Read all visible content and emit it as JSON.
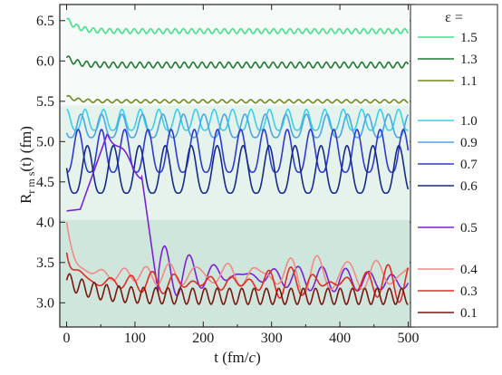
{
  "chart_data": {
    "type": "line",
    "title": "",
    "xlabel": "t (fm/c)",
    "xlabel_parts": {
      "main": "t (fm/",
      "italic": "c",
      "end": ")"
    },
    "ylabel": "Rrms(t) (fm)",
    "ylabel_parts": {
      "main": "R",
      "sub": "r m s",
      "end": "(t) (fm)"
    },
    "xlim": [
      -10,
      510
    ],
    "ylim": [
      2.7,
      6.7
    ],
    "xticks": [
      0,
      100,
      200,
      300,
      400,
      500
    ],
    "xtick_labels": [
      "0",
      "100",
      "200",
      "300",
      "400",
      "500"
    ],
    "yticks": [
      3.0,
      3.5,
      4.0,
      4.5,
      5.0,
      5.5,
      6.0,
      6.5
    ],
    "ytick_labels": [
      "3.0",
      "3.5",
      "4.0",
      "4.5",
      "5.0",
      "5.5",
      "6.0",
      "6.5"
    ],
    "grid": false,
    "background_bands": [
      {
        "y0": 2.7,
        "y1": 4.03,
        "color": "#cfe6dc"
      },
      {
        "y0": 4.03,
        "y1": 5.45,
        "color": "#e6f2ec"
      },
      {
        "y0": 5.45,
        "y1": 6.7,
        "color": "#f6faf8"
      }
    ],
    "legend_title": "ε =",
    "legend_position": "right-outside",
    "series": [
      {
        "name": "1.5",
        "color": "#44e08a",
        "kind": "osc",
        "base": 6.37,
        "amp": 0.03,
        "period": 12,
        "start": 6.52,
        "tau": 15
      },
      {
        "name": "1.3",
        "color": "#1f7a30",
        "kind": "osc",
        "base": 5.95,
        "amp": 0.035,
        "period": 13,
        "start": 6.04,
        "tau": 15
      },
      {
        "name": "1.1",
        "color": "#6f8a1a",
        "kind": "osc",
        "base": 5.5,
        "amp": 0.02,
        "period": 14,
        "start": 5.56,
        "tau": 15
      },
      {
        "name": "1.0",
        "color": "#3ad0e8",
        "kind": "cusp",
        "lo": 5.14,
        "hi": 5.4,
        "period": 27,
        "phase": 0.0
      },
      {
        "name": "0.9",
        "color": "#4aa6e8",
        "kind": "cusp",
        "lo": 5.05,
        "hi": 5.34,
        "period": 30,
        "phase": 0.3
      },
      {
        "name": "0.7",
        "color": "#2e3bd0",
        "kind": "cusp",
        "lo": 4.62,
        "hi": 5.15,
        "period": 34,
        "phase": 0.5
      },
      {
        "name": "0.6",
        "color": "#152a8a",
        "kind": "cusp",
        "lo": 4.36,
        "hi": 4.95,
        "period": 38,
        "phase": 0.2
      },
      {
        "name": "0.5",
        "color": "#7a22d6",
        "kind": "breakup"
      },
      {
        "name": "0.4",
        "color": "#f28a86",
        "kind": "noisy",
        "base": 3.35,
        "amp": 0.22,
        "seed": 1,
        "start": 3.95
      },
      {
        "name": "0.3",
        "color": "#e42a22",
        "kind": "noisy",
        "base": 3.25,
        "amp": 0.2,
        "seed": 2,
        "start": 3.72
      },
      {
        "name": "0.1",
        "color": "#7a1812",
        "kind": "osc",
        "base": 3.08,
        "amp": 0.1,
        "period": 18,
        "start": 3.28,
        "tau": 40,
        "drift": 0.0
      }
    ]
  }
}
